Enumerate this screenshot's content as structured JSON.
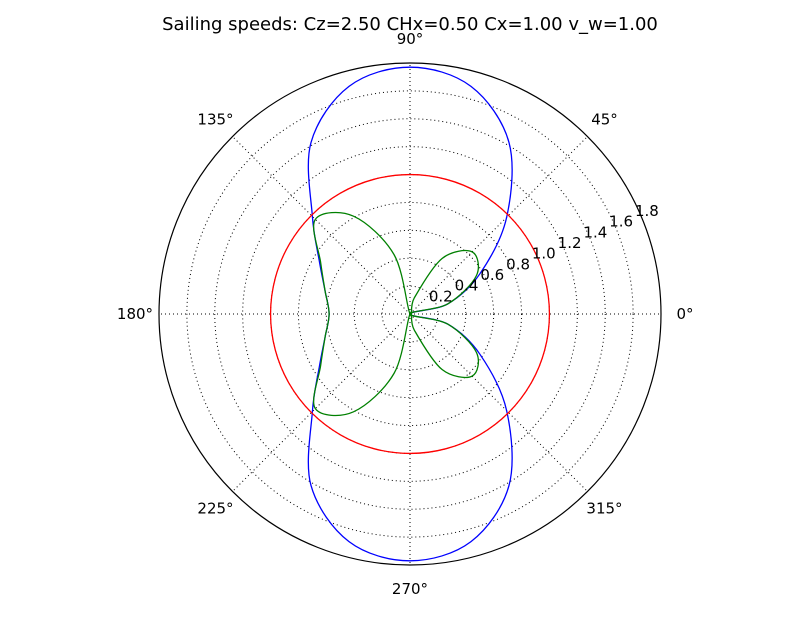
{
  "chart_data": {
    "type": "polar-line",
    "title": "Sailing speeds: Cz=2.50 CHx=0.50 Cx=1.00 v_w=1.00",
    "theta_unit": "degrees",
    "theta_ticks": [
      {
        "value": 0,
        "label": "0°"
      },
      {
        "value": 45,
        "label": "45°"
      },
      {
        "value": 90,
        "label": "90°"
      },
      {
        "value": 135,
        "label": "135°"
      },
      {
        "value": 180,
        "label": "180°"
      },
      {
        "value": 225,
        "label": "225°"
      },
      {
        "value": 270,
        "label": "270°"
      },
      {
        "value": 315,
        "label": "315°"
      }
    ],
    "r_ticks": [
      {
        "value": 0.2,
        "label": "0.2"
      },
      {
        "value": 0.4,
        "label": "0.4"
      },
      {
        "value": 0.6,
        "label": "0.6"
      },
      {
        "value": 0.8,
        "label": "0.8"
      },
      {
        "value": 1.0,
        "label": "1.0"
      },
      {
        "value": 1.2,
        "label": "1.2"
      },
      {
        "value": 1.4,
        "label": "1.4"
      },
      {
        "value": 1.6,
        "label": "1.6"
      },
      {
        "value": 1.8,
        "label": "1.8"
      }
    ],
    "rlim": [
      0,
      1.8
    ],
    "r_label_angle": 22.5,
    "grid": true,
    "series": [
      {
        "color": "#0000ff",
        "theta": [
          0,
          15,
          30,
          45,
          60,
          75,
          90,
          105,
          120,
          135,
          150,
          165,
          180,
          195,
          210,
          225,
          240,
          255,
          270,
          285,
          300,
          315,
          330,
          345,
          360
        ],
        "r": [
          0.0,
          0.28,
          0.58,
          0.98,
          1.42,
          1.69,
          1.77,
          1.69,
          1.42,
          0.99,
          0.75,
          0.63,
          0.58,
          0.63,
          0.75,
          0.99,
          1.42,
          1.69,
          1.77,
          1.69,
          1.42,
          0.98,
          0.58,
          0.28,
          0.0
        ]
      },
      {
        "color": "#ff0000",
        "theta": [
          0,
          15,
          30,
          45,
          60,
          75,
          90,
          105,
          120,
          135,
          150,
          165,
          180,
          195,
          210,
          225,
          240,
          255,
          270,
          285,
          300,
          315,
          330,
          345,
          360
        ],
        "r": [
          1.0,
          1.0,
          1.0,
          1.0,
          1.0,
          1.0,
          1.0,
          1.0,
          1.0,
          1.0,
          1.0,
          1.0,
          1.0,
          1.0,
          1.0,
          1.0,
          1.0,
          1.0,
          1.0,
          1.0,
          1.0,
          1.0,
          1.0,
          1.0,
          1.0
        ]
      },
      {
        "color": "#008000",
        "theta": [
          0,
          15,
          30,
          45,
          60,
          75,
          90,
          105,
          120,
          135,
          150,
          165,
          180,
          195,
          210,
          225,
          240,
          255,
          270,
          285,
          300,
          315,
          330,
          345,
          360
        ],
        "r": [
          0.0,
          0.28,
          0.55,
          0.63,
          0.46,
          0.12,
          0.0,
          0.44,
          0.81,
          0.96,
          0.74,
          0.63,
          0.58,
          0.63,
          0.74,
          0.96,
          0.81,
          0.44,
          0.0,
          0.12,
          0.46,
          0.63,
          0.55,
          0.28,
          0.0
        ]
      }
    ]
  }
}
